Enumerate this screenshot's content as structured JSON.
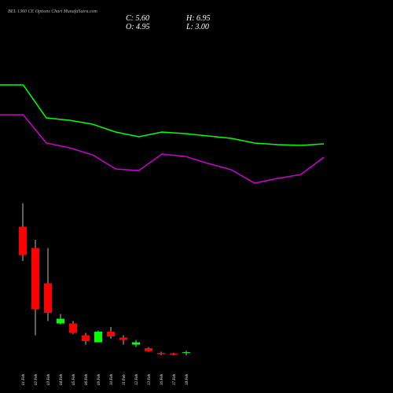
{
  "header": {
    "title": "BEL 1360 CE Options Chart MunafaSutra.com",
    "close": "C: 5.60",
    "high": "H: 6.95",
    "open": "O: 4.95",
    "low": "L: 3.00"
  },
  "chart_data": [
    {
      "type": "line",
      "x": [
        0,
        1,
        2,
        3,
        4,
        5,
        6,
        7,
        8,
        9,
        10,
        11,
        12,
        13,
        14
      ],
      "xlim": [
        0,
        14
      ],
      "ylim": [
        0,
        100
      ],
      "series": [
        {
          "color": "#00ff00",
          "values": [
            88.75,
            88.75,
            62.5,
            60.6,
            57.5,
            51.25,
            47.5,
            51.25,
            50,
            48.1,
            46.25,
            42.5,
            41.25,
            40.6,
            41.9
          ]
        },
        {
          "color": "#cc00cc",
          "values": [
            65,
            65,
            42.5,
            38.75,
            33.1,
            21.9,
            20.6,
            33.75,
            31.9,
            26.25,
            21.25,
            10.6,
            14.4,
            17.5,
            31.25
          ]
        }
      ]
    },
    {
      "type": "candlestick",
      "ylim": [
        0,
        140
      ],
      "up_color": "#00ff00",
      "down_color": "#ff0000",
      "categories": [
        "01 Feb",
        "02 Feb",
        "03 Feb",
        "04 Feb",
        "05 Feb",
        "06 Feb",
        "09 Feb",
        "10 Feb",
        "11 Feb",
        "12 Feb",
        "13 Feb",
        "16 Feb",
        "17 Feb",
        "18 Feb"
      ],
      "open": [
        112,
        94,
        64,
        30,
        30,
        20,
        14,
        23,
        18,
        12,
        9,
        5,
        4.5,
        4.95
      ],
      "high": [
        132,
        101,
        94,
        38,
        32,
        22,
        24,
        27,
        20,
        16,
        10,
        6,
        5,
        6.95
      ],
      "low": [
        83,
        20,
        32,
        29,
        21,
        12,
        14,
        17,
        12,
        10,
        6,
        3,
        3,
        3.0
      ],
      "close": [
        88,
        42,
        39,
        34,
        22,
        15,
        23,
        19,
        16,
        14,
        6.5,
        4,
        3.5,
        5.6
      ]
    }
  ]
}
